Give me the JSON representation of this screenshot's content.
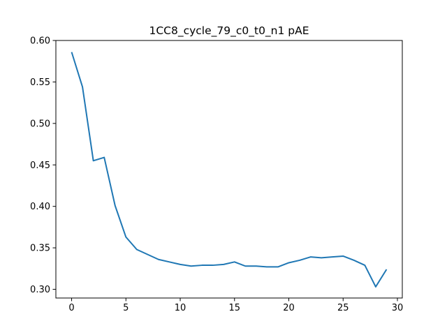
{
  "chart_data": {
    "type": "line",
    "title": "1CC8_cycle_79_c0_t0_n1 pAE",
    "xlabel": "",
    "ylabel": "",
    "xlim": [
      -1.45,
      30.45
    ],
    "ylim": [
      0.2895,
      0.6
    ],
    "x_ticks": [
      0,
      5,
      10,
      15,
      20,
      25,
      30
    ],
    "y_ticks": [
      0.3,
      0.35,
      0.4,
      0.45,
      0.5,
      0.55,
      0.6
    ],
    "x_tick_labels": [
      "0",
      "5",
      "10",
      "15",
      "20",
      "25",
      "30"
    ],
    "y_tick_labels": [
      "0.30",
      "0.35",
      "0.40",
      "0.45",
      "0.50",
      "0.55",
      "0.60"
    ],
    "grid": false,
    "series": [
      {
        "color": "#1f77b4",
        "x": [
          0,
          1,
          2,
          3,
          4,
          5,
          6,
          7,
          8,
          9,
          10,
          11,
          12,
          13,
          14,
          15,
          16,
          17,
          18,
          19,
          20,
          21,
          22,
          23,
          24,
          25,
          26,
          27,
          28,
          29
        ],
        "values": [
          0.586,
          0.544,
          0.455,
          0.459,
          0.401,
          0.363,
          0.348,
          0.342,
          0.336,
          0.333,
          0.33,
          0.328,
          0.329,
          0.329,
          0.33,
          0.333,
          0.328,
          0.328,
          0.327,
          0.327,
          0.332,
          0.335,
          0.339,
          0.338,
          0.339,
          0.34,
          0.335,
          0.329,
          0.303,
          0.324
        ]
      }
    ]
  }
}
